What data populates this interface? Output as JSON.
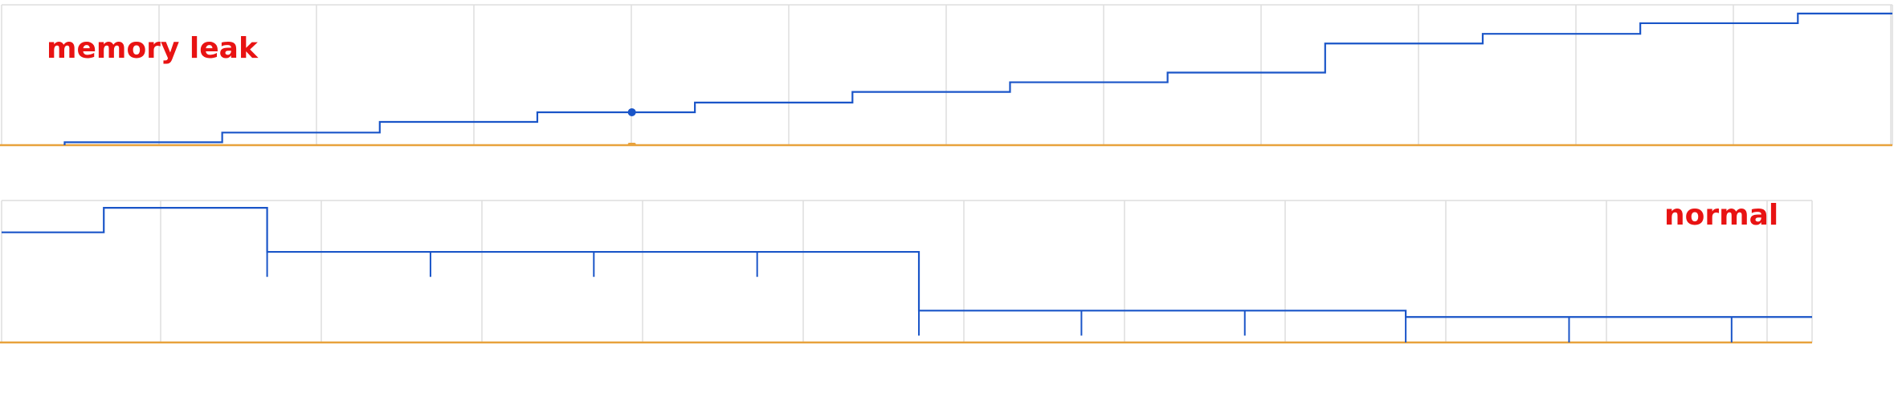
{
  "colors": {
    "series": "#1a55c8",
    "baseline": "#e8a23c",
    "grid": "#dedede",
    "label": "#e81313",
    "point": "#1a55c8",
    "point_marker_baseline": "#e8a23c"
  },
  "chart_data": [
    {
      "type": "line",
      "step": "post",
      "title": "",
      "annotation": "memory leak",
      "xlabel": "",
      "ylabel": "",
      "xlim": [
        0,
        24
      ],
      "ylim": [
        0,
        14.5
      ],
      "grid": true,
      "series": [
        {
          "values_x": [
            0.8,
            2.8,
            4.8,
            6.8,
            8.8,
            10.8,
            12.8,
            14.8,
            16.8,
            18.8,
            20.8,
            22.8,
            24
          ],
          "values_y": [
            0.3,
            1.3,
            2.4,
            3.4,
            4.4,
            5.5,
            6.5,
            7.5,
            10.5,
            11.5,
            12.6,
            13.6,
            13.6
          ]
        }
      ],
      "highlight_point": {
        "x": 8.0,
        "y": 3.4
      }
    },
    {
      "type": "line",
      "step": "post",
      "title": "",
      "annotation": "normal",
      "xlabel": "",
      "ylabel": "",
      "xlim": [
        0,
        22.5
      ],
      "ylim": [
        0,
        14.5
      ],
      "grid": true,
      "series": [
        {
          "values_x": [
            0,
            1.27,
            3.3,
            11.4,
            17.45,
            22.5
          ],
          "values_y": [
            11.25,
            13.75,
            9.25,
            3.25,
            2.6,
            2.6
          ]
        }
      ],
      "ticks": [
        {
          "x": 3.3,
          "from": 6.7,
          "to": 9.25
        },
        {
          "x": 5.33,
          "from": 6.7,
          "to": 9.25
        },
        {
          "x": 7.36,
          "from": 6.7,
          "to": 9.25
        },
        {
          "x": 9.39,
          "from": 6.7,
          "to": 9.25
        },
        {
          "x": 11.4,
          "from": 0.7,
          "to": 3.25
        },
        {
          "x": 13.42,
          "from": 0.7,
          "to": 3.25
        },
        {
          "x": 15.45,
          "from": 0.7,
          "to": 3.25
        },
        {
          "x": 17.45,
          "from": 0.0,
          "to": 2.6
        },
        {
          "x": 19.48,
          "from": 0.0,
          "to": 2.6
        },
        {
          "x": 21.5,
          "from": 0.0,
          "to": 2.6
        }
      ]
    }
  ]
}
